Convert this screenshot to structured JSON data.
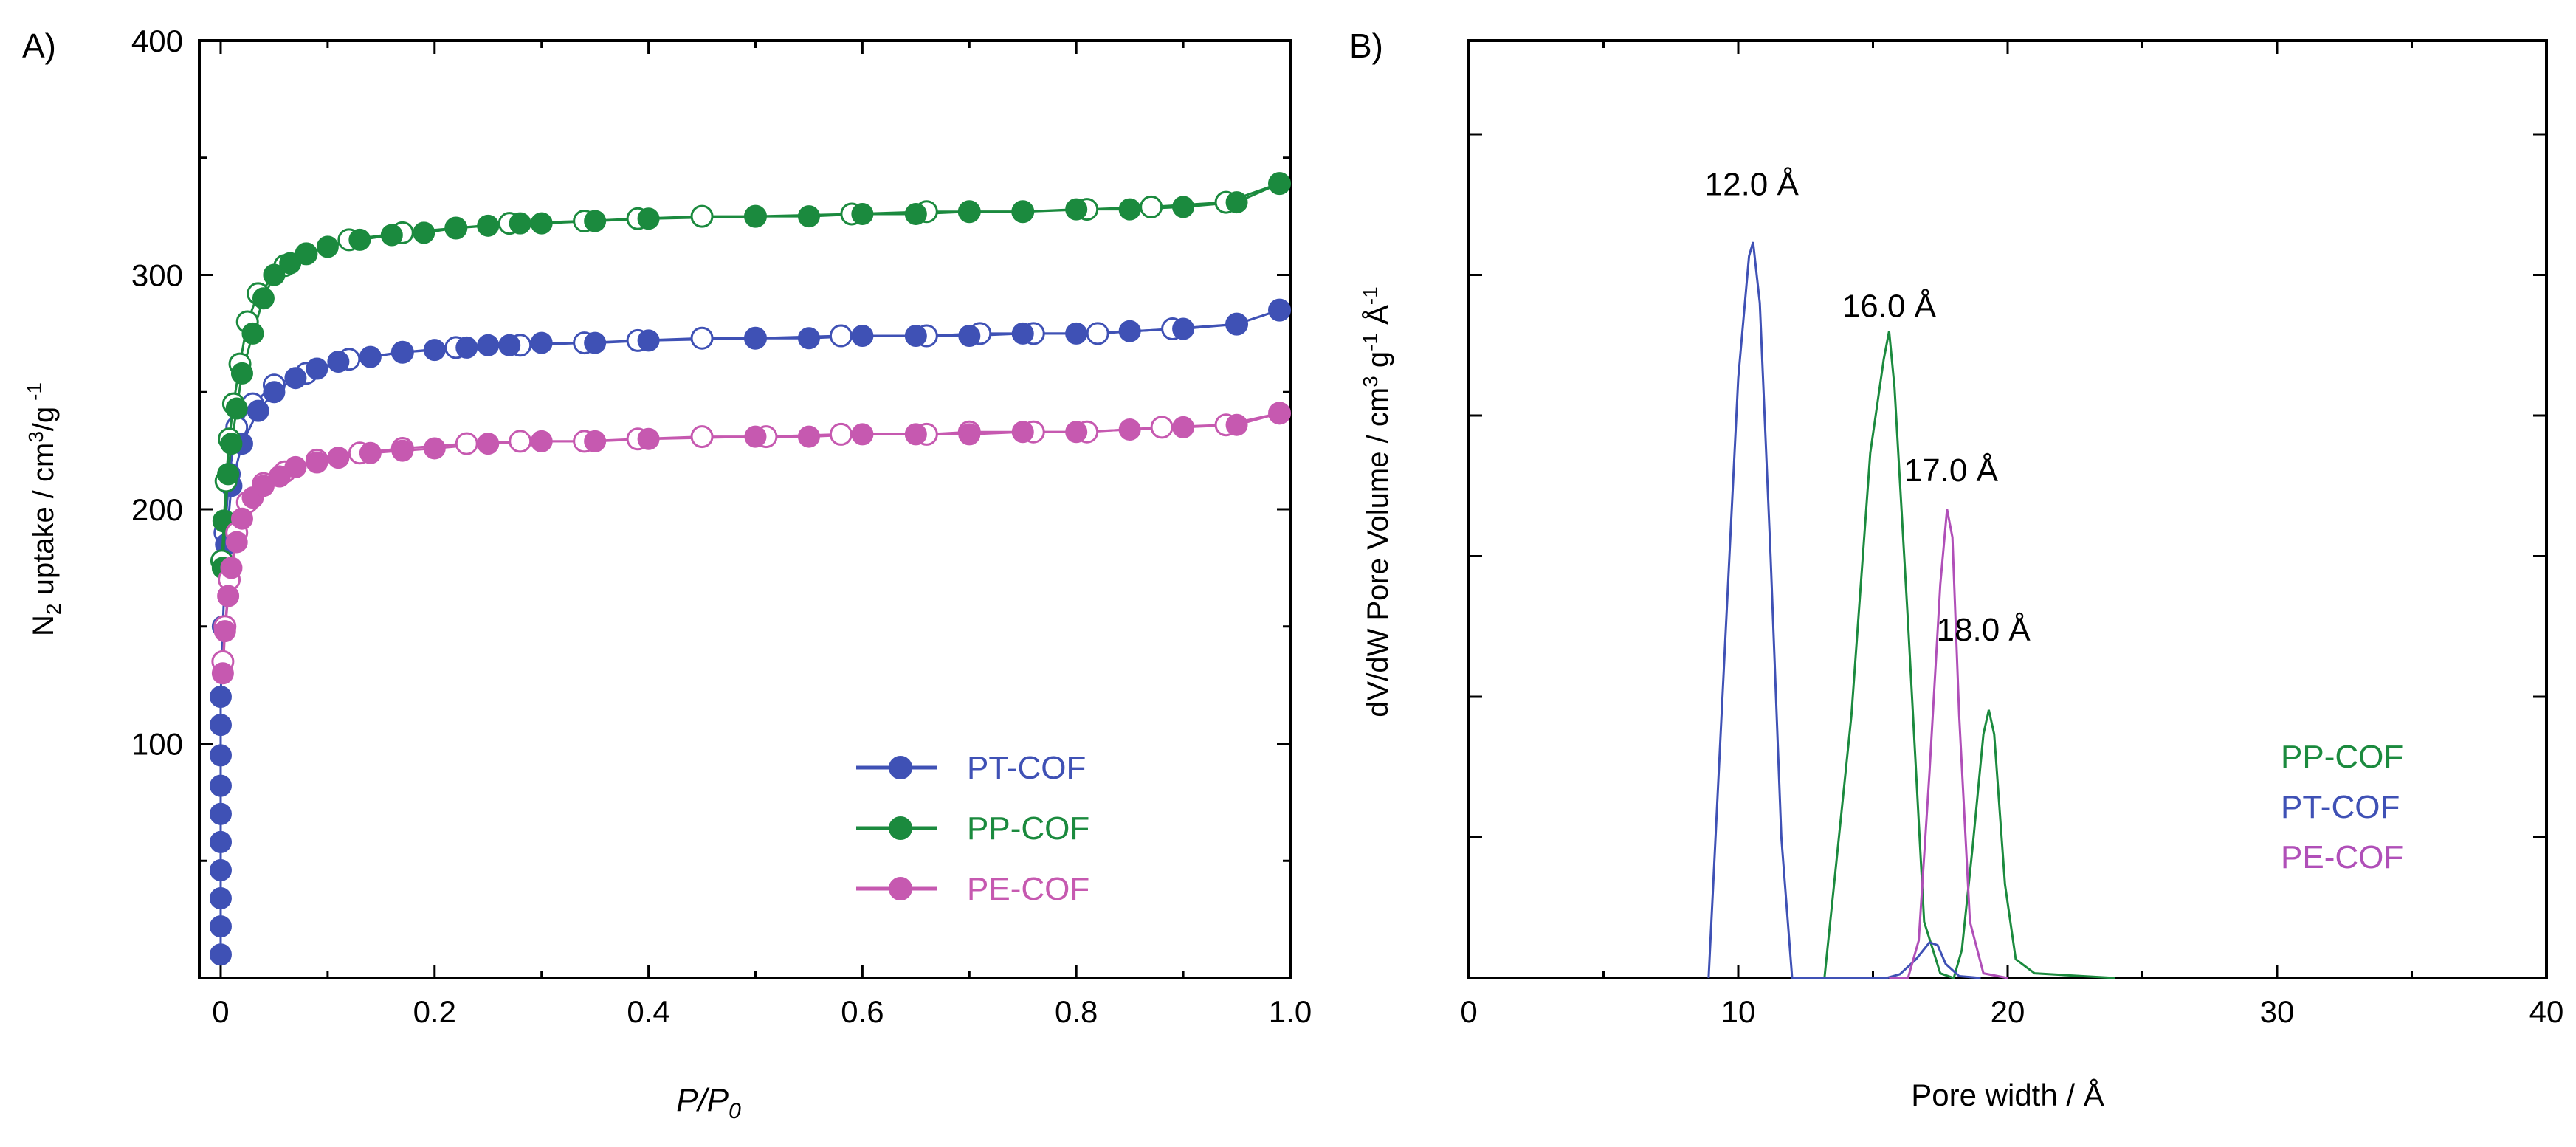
{
  "chart_data": [
    {
      "panel_label": "A)",
      "type": "scatter",
      "xlabel_main": "P/P",
      "xlabel_sub": "0",
      "ylabel": {
        "pre": "N",
        "sub": "2",
        "mid": " uptake / cm",
        "sup1": "3",
        "mid2": "/g",
        "sup2": " -1"
      },
      "xlim": [
        -0.02,
        1.0
      ],
      "ylim": [
        0,
        400
      ],
      "xticks": [
        "0",
        "0.2",
        "0.4",
        "0.6",
        "0.8",
        "1.0"
      ],
      "xtick_values": [
        0,
        0.2,
        0.4,
        0.6,
        0.8,
        1.0
      ],
      "yticks": [
        "100",
        "200",
        "300",
        "400"
      ],
      "ytick_values": [
        100,
        200,
        300,
        400
      ],
      "legend_position": "bottom-right",
      "series": [
        {
          "name": "PT-COF",
          "color": "#3f51b5",
          "adsorption": [
            [
              0,
              10
            ],
            [
              0,
              22
            ],
            [
              0,
              34
            ],
            [
              0,
              46
            ],
            [
              0,
              58
            ],
            [
              0,
              70
            ],
            [
              0,
              82
            ],
            [
              0,
              95
            ],
            [
              0,
              108
            ],
            [
              0,
              120
            ],
            [
              0.002,
              150
            ],
            [
              0.005,
              185
            ],
            [
              0.01,
              210
            ],
            [
              0.02,
              228
            ],
            [
              0.035,
              242
            ],
            [
              0.05,
              250
            ],
            [
              0.07,
              256
            ],
            [
              0.09,
              260
            ],
            [
              0.11,
              263
            ],
            [
              0.14,
              265
            ],
            [
              0.17,
              267
            ],
            [
              0.2,
              268
            ],
            [
              0.23,
              269
            ],
            [
              0.25,
              270
            ],
            [
              0.27,
              270
            ],
            [
              0.3,
              271
            ],
            [
              0.35,
              271
            ],
            [
              0.4,
              272
            ],
            [
              0.5,
              273
            ],
            [
              0.55,
              273
            ],
            [
              0.6,
              274
            ],
            [
              0.65,
              274
            ],
            [
              0.7,
              274
            ],
            [
              0.75,
              275
            ],
            [
              0.8,
              275
            ],
            [
              0.85,
              276
            ],
            [
              0.9,
              277
            ],
            [
              0.95,
              279
            ],
            [
              0.99,
              285
            ]
          ],
          "desorption": [
            [
              0.99,
              285
            ],
            [
              0.95,
              279
            ],
            [
              0.89,
              277
            ],
            [
              0.82,
              275
            ],
            [
              0.76,
              275
            ],
            [
              0.71,
              275
            ],
            [
              0.66,
              274
            ],
            [
              0.58,
              274
            ],
            [
              0.5,
              273
            ],
            [
              0.45,
              273
            ],
            [
              0.39,
              272
            ],
            [
              0.34,
              271
            ],
            [
              0.28,
              270
            ],
            [
              0.22,
              269
            ],
            [
              0.17,
              267
            ],
            [
              0.12,
              264
            ],
            [
              0.08,
              258
            ],
            [
              0.05,
              253
            ],
            [
              0.03,
              245
            ],
            [
              0.015,
              235
            ],
            [
              0.008,
              215
            ],
            [
              0.004,
              190
            ]
          ]
        },
        {
          "name": "PP-COF",
          "color": "#1b8a3e",
          "adsorption": [
            [
              0.002,
              175
            ],
            [
              0.004,
              195
            ],
            [
              0.007,
              215
            ],
            [
              0.01,
              228
            ],
            [
              0.015,
              243
            ],
            [
              0.02,
              258
            ],
            [
              0.03,
              275
            ],
            [
              0.04,
              290
            ],
            [
              0.05,
              300
            ],
            [
              0.065,
              305
            ],
            [
              0.08,
              309
            ],
            [
              0.1,
              312
            ],
            [
              0.13,
              315
            ],
            [
              0.16,
              317
            ],
            [
              0.19,
              318
            ],
            [
              0.22,
              320
            ],
            [
              0.25,
              321
            ],
            [
              0.28,
              322
            ],
            [
              0.3,
              322
            ],
            [
              0.35,
              323
            ],
            [
              0.4,
              324
            ],
            [
              0.5,
              325
            ],
            [
              0.55,
              325
            ],
            [
              0.6,
              326
            ],
            [
              0.65,
              326
            ],
            [
              0.7,
              327
            ],
            [
              0.75,
              327
            ],
            [
              0.8,
              328
            ],
            [
              0.85,
              328
            ],
            [
              0.9,
              329
            ],
            [
              0.95,
              331
            ],
            [
              0.99,
              339
            ]
          ],
          "desorption": [
            [
              0.99,
              339
            ],
            [
              0.94,
              331
            ],
            [
              0.87,
              329
            ],
            [
              0.81,
              328
            ],
            [
              0.75,
              327
            ],
            [
              0.7,
              327
            ],
            [
              0.66,
              327
            ],
            [
              0.59,
              326
            ],
            [
              0.5,
              325
            ],
            [
              0.45,
              325
            ],
            [
              0.39,
              324
            ],
            [
              0.34,
              323
            ],
            [
              0.27,
              322
            ],
            [
              0.22,
              320
            ],
            [
              0.17,
              318
            ],
            [
              0.12,
              315
            ],
            [
              0.08,
              309
            ],
            [
              0.06,
              304
            ],
            [
              0.035,
              292
            ],
            [
              0.025,
              280
            ],
            [
              0.018,
              262
            ],
            [
              0.012,
              245
            ],
            [
              0.008,
              230
            ],
            [
              0.005,
              212
            ],
            [
              0.003,
              195
            ],
            [
              0.001,
              178
            ]
          ]
        },
        {
          "name": "PE-COF",
          "color": "#c659b0",
          "adsorption": [
            [
              0.002,
              130
            ],
            [
              0.004,
              148
            ],
            [
              0.007,
              163
            ],
            [
              0.01,
              175
            ],
            [
              0.015,
              186
            ],
            [
              0.02,
              196
            ],
            [
              0.03,
              205
            ],
            [
              0.04,
              210
            ],
            [
              0.055,
              214
            ],
            [
              0.07,
              218
            ],
            [
              0.09,
              220
            ],
            [
              0.11,
              222
            ],
            [
              0.14,
              224
            ],
            [
              0.17,
              225
            ],
            [
              0.2,
              226
            ],
            [
              0.25,
              228
            ],
            [
              0.3,
              229
            ],
            [
              0.35,
              229
            ],
            [
              0.4,
              230
            ],
            [
              0.5,
              231
            ],
            [
              0.55,
              231
            ],
            [
              0.6,
              232
            ],
            [
              0.65,
              232
            ],
            [
              0.7,
              232
            ],
            [
              0.75,
              233
            ],
            [
              0.8,
              233
            ],
            [
              0.85,
              234
            ],
            [
              0.9,
              235
            ],
            [
              0.95,
              236
            ],
            [
              0.99,
              241
            ]
          ],
          "desorption": [
            [
              0.99,
              241
            ],
            [
              0.94,
              236
            ],
            [
              0.88,
              235
            ],
            [
              0.81,
              233
            ],
            [
              0.76,
              233
            ],
            [
              0.7,
              233
            ],
            [
              0.66,
              232
            ],
            [
              0.58,
              232
            ],
            [
              0.51,
              231
            ],
            [
              0.45,
              231
            ],
            [
              0.39,
              230
            ],
            [
              0.34,
              229
            ],
            [
              0.28,
              229
            ],
            [
              0.23,
              228
            ],
            [
              0.17,
              226
            ],
            [
              0.13,
              224
            ],
            [
              0.09,
              221
            ],
            [
              0.06,
              216
            ],
            [
              0.04,
              211
            ],
            [
              0.025,
              203
            ],
            [
              0.015,
              190
            ],
            [
              0.008,
              170
            ],
            [
              0.004,
              150
            ],
            [
              0.002,
              135
            ]
          ]
        }
      ]
    },
    {
      "panel_label": "B)",
      "type": "line",
      "xlabel": "Pore width / Å",
      "ylabel": {
        "pre": "dV/dW Pore Volume / cm",
        "sup1": "3",
        "mid": " g",
        "sup2": "-1",
        "mid2": " Å",
        "sup3": "-1"
      },
      "xlim": [
        0,
        40
      ],
      "ylim": [
        0,
        1.0
      ],
      "xticks": [
        "0",
        "10",
        "20",
        "30",
        "40"
      ],
      "xtick_values": [
        0,
        10,
        20,
        30,
        40
      ],
      "legend_position": "right",
      "annotations": [
        {
          "text": "12.0 Å",
          "x": 10.5,
          "y": 0.835
        },
        {
          "text": "16.0 Å",
          "x": 15.6,
          "y": 0.705
        },
        {
          "text": "17.0 Å",
          "x": 17.9,
          "y": 0.53
        },
        {
          "text": "18.0 Å",
          "x": 19.1,
          "y": 0.36
        }
      ],
      "series": [
        {
          "name": "PP-COF",
          "color": "#1b8a3e",
          "points": [
            [
              13.2,
              0
            ],
            [
              14.2,
              0.28
            ],
            [
              14.9,
              0.56
            ],
            [
              15.4,
              0.66
            ],
            [
              15.6,
              0.69
            ],
            [
              15.8,
              0.63
            ],
            [
              16.3,
              0.38
            ],
            [
              16.9,
              0.06
            ],
            [
              17.5,
              0.005
            ],
            [
              18.0,
              0.0
            ],
            [
              18.3,
              0.03
            ],
            [
              18.7,
              0.14
            ],
            [
              19.1,
              0.26
            ],
            [
              19.3,
              0.286
            ],
            [
              19.5,
              0.26
            ],
            [
              19.9,
              0.1
            ],
            [
              20.3,
              0.02
            ],
            [
              21.0,
              0.005
            ],
            [
              24.0,
              0.0
            ]
          ]
        },
        {
          "name": "PT-COF",
          "color": "#3f51b5",
          "points": [
            [
              8.9,
              0
            ],
            [
              9.5,
              0.35
            ],
            [
              10.0,
              0.64
            ],
            [
              10.4,
              0.77
            ],
            [
              10.55,
              0.785
            ],
            [
              10.8,
              0.72
            ],
            [
              11.2,
              0.45
            ],
            [
              11.6,
              0.15
            ],
            [
              12.0,
              0.0
            ],
            [
              15.5,
              0.0
            ],
            [
              16.0,
              0.004
            ],
            [
              16.6,
              0.02
            ],
            [
              17.1,
              0.038
            ],
            [
              17.4,
              0.035
            ],
            [
              17.7,
              0.015
            ],
            [
              18.2,
              0.002
            ],
            [
              19.0,
              0.0
            ]
          ]
        },
        {
          "name": "PE-COF",
          "color": "#b04fb8",
          "points": [
            [
              15.6,
              0
            ],
            [
              16.3,
              0.0
            ],
            [
              16.7,
              0.04
            ],
            [
              17.1,
              0.22
            ],
            [
              17.5,
              0.42
            ],
            [
              17.75,
              0.5
            ],
            [
              17.95,
              0.47
            ],
            [
              18.2,
              0.28
            ],
            [
              18.6,
              0.06
            ],
            [
              19.1,
              0.005
            ],
            [
              20.0,
              0.0
            ]
          ]
        }
      ]
    }
  ]
}
